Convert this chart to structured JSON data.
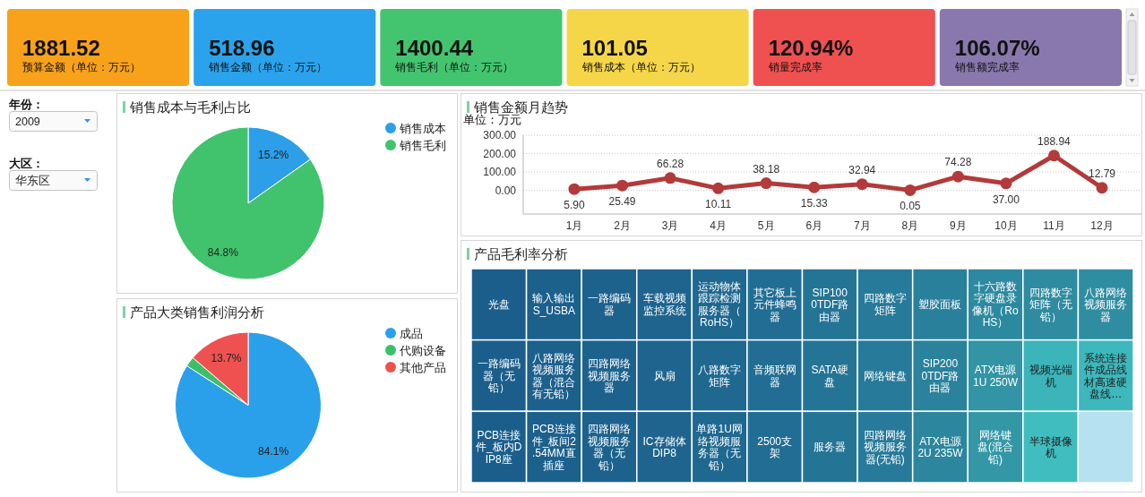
{
  "chart_data": [
    {
      "type": "other",
      "categories": [
        "预算金额（单位：万元）",
        "销售金额（单位：万元）",
        "销售毛利（单位：万元）",
        "销售成本（单位：万元）",
        "销量完成率",
        "销售额完成率"
      ],
      "value_labels": [
        "1881.52",
        "518.96",
        "1400.44",
        "101.05",
        "120.94%",
        "106.07%"
      ],
      "colors": [
        "#f8a11b",
        "#2aa3ec",
        "#43c56f",
        "#f5d649",
        "#ef5050",
        "#8878ad"
      ]
    },
    {
      "type": "other",
      "annotations": [
        "年份：",
        "2009",
        "大区：",
        "华东区"
      ]
    },
    {
      "type": "pie",
      "title": "销售成本与毛利占比",
      "categories": [
        "销售成本",
        "销售毛利"
      ],
      "values": [
        15.2,
        84.8
      ],
      "value_labels": [
        "15.2%",
        "84.8%"
      ],
      "colors": [
        "#2c9fe8",
        "#41c36e"
      ],
      "legend": "top right"
    },
    {
      "type": "line",
      "title": "销售金额月趋势",
      "ylabel": "单位：万元",
      "categories": [
        "1月",
        "2月",
        "3月",
        "4月",
        "5月",
        "6月",
        "7月",
        "8月",
        "9月",
        "10月",
        "11月",
        "12月"
      ],
      "series": [
        {
          "color": "#b33a3a",
          "values": [
            5.9,
            25.49,
            66.28,
            10.11,
            38.18,
            15.33,
            32.94,
            0.05,
            74.28,
            37.0,
            188.94,
            12.79
          ],
          "value_labels": [
            "5.90",
            "25.49",
            "66.28",
            "10.11",
            "38.18",
            "15.33",
            "32.94",
            "0.05",
            "74.28",
            "37.00",
            "188.94",
            "12.79"
          ]
        }
      ],
      "ylim": [
        -130,
        300
      ],
      "yticks": [
        {
          "value": 0,
          "label": "0.00"
        },
        {
          "value": 100,
          "label": "100.00"
        },
        {
          "value": 200,
          "label": "200.00"
        },
        {
          "value": 300,
          "label": "300.00"
        }
      ],
      "grid": "y",
      "marker": "circle"
    },
    {
      "type": "pie",
      "title": "产品大类销售利润分析",
      "categories": [
        "成品",
        "代购设备",
        "其他产品"
      ],
      "values": [
        84.1,
        2.2,
        13.7
      ],
      "value_labels": [
        "84.1%",
        null,
        "13.7%"
      ],
      "colors": [
        "#2aa0ea",
        "#3dbf6a",
        "#ef5151"
      ],
      "legend": "top right"
    },
    {
      "type": "other",
      "title": "产品毛利率分析",
      "categories": [
        "光盘",
        "一路编码器（无铅）",
        "PCB连接件_板内DIP8座",
        "输入输出S_USBA",
        "八路网络视频服务器（混合有无铅）",
        "PCB连接件_板间2.54MM直插座",
        "一路编码器",
        "四路网络视频服务器",
        "四路网络视频服务器（无铅）",
        "车载视频监控系统",
        "风扇",
        "IC存储体DIP8",
        "运动物体跟踪检测服务器（RoHS）",
        "八路数字矩阵",
        "单路1U网络视频服务器（无铅）",
        "其它板上元件蜂鸣器",
        "音频联网器",
        "2500支架",
        "SIP1000TDF路由器",
        "SATA硬盘",
        "服务器",
        "四路数字矩阵",
        "网络键盘",
        "四路网络视频服务器(无铅)",
        "塑胶面板",
        "SIP2000TDF路由器",
        "ATX电源2U 235W",
        "十六路数字硬盘录像机（RoHS）",
        "四路数字矩阵（无铅）",
        "八路网络视频服务器",
        "ATX电源1U 250W",
        "网络键盘(混合铅)",
        "视频光端机",
        "系统连接件成品线材高速硬盘线…",
        "半球摄像机",
        null
      ],
      "colors": [
        "#1b5e8b",
        "#1b5e8b",
        "#1b5e8b",
        "#1c608c",
        "#1c608c",
        "#1c608c",
        "#1d628d",
        "#1d628d",
        "#1d628d",
        "#1e648e",
        "#1e648e",
        "#1e648e",
        "#1f6890",
        "#1f6890",
        "#1f6890",
        "#216d93",
        "#216d93",
        "#216d93",
        "#247496",
        "#247496",
        "#247496",
        "#277a99",
        "#277a99",
        "#277a99",
        "#29809b",
        "#2a829c",
        "#2c869d",
        "#2d899f",
        "#2e8ba0",
        "#2f8da1",
        "#3294a4",
        "#3397a6",
        "#3bb4ba",
        "#3db8bc",
        "#40bdbf",
        "#b5e1f0"
      ]
    }
  ]
}
